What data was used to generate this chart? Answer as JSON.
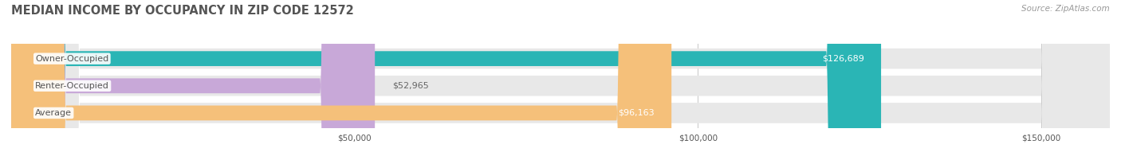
{
  "title": "MEDIAN INCOME BY OCCUPANCY IN ZIP CODE 12572",
  "source": "Source: ZipAtlas.com",
  "categories": [
    "Owner-Occupied",
    "Renter-Occupied",
    "Average"
  ],
  "values": [
    126689,
    52965,
    96163
  ],
  "bar_colors": [
    "#2ab5b5",
    "#c8a8d8",
    "#f5c07a"
  ],
  "bar_bg_color": "#e8e8e8",
  "value_labels": [
    "$126,689",
    "$52,965",
    "$96,163"
  ],
  "x_ticks": [
    0,
    50000,
    100000,
    150000
  ],
  "x_tick_labels": [
    "$50,000",
    "$100,000",
    "$150,000"
  ],
  "x_max": 160000,
  "title_color": "#555555",
  "label_color": "#555555",
  "value_color_inside": "#ffffff",
  "value_color_outside": "#666666",
  "source_color": "#999999",
  "title_fontsize": 10.5,
  "label_fontsize": 8.0,
  "value_fontsize": 8.0,
  "tick_fontsize": 7.5,
  "source_fontsize": 7.5
}
